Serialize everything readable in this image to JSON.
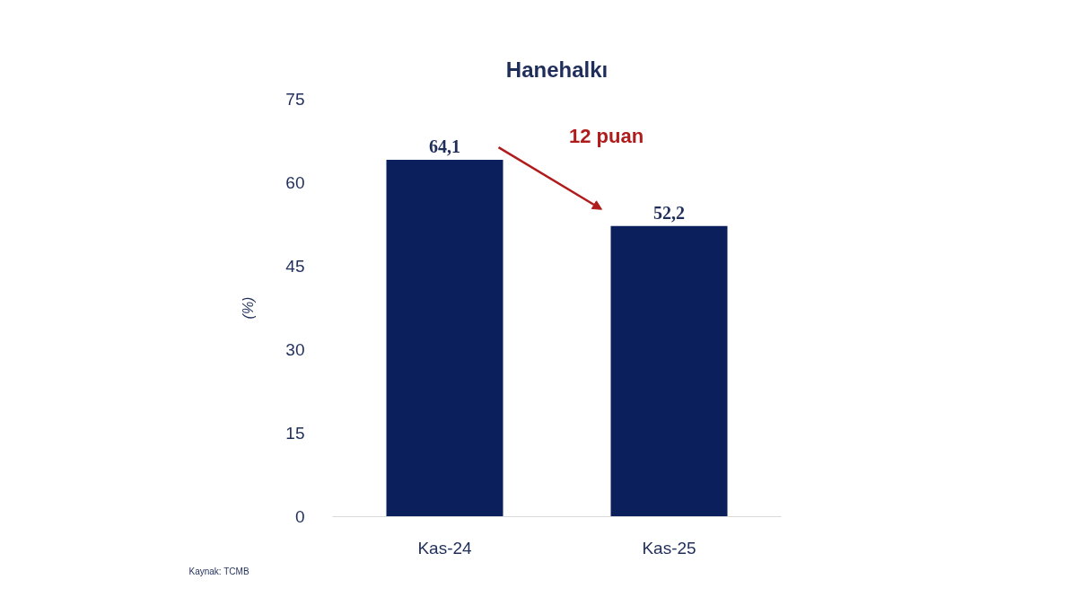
{
  "chart_data": {
    "type": "bar",
    "title": "Hanehalkı",
    "ylabel": "(%)",
    "categories": [
      "Kas-24",
      "Kas-25"
    ],
    "series": [
      {
        "color": "#0b1f5c",
        "values": [
          64.1,
          52.2
        ],
        "value_labels": [
          "64,1",
          "52,2"
        ]
      }
    ],
    "ylim": [
      0,
      75
    ],
    "yticks": [
      0,
      15,
      30,
      45,
      60,
      75
    ],
    "grid": false,
    "annotations": [
      "12 puan",
      "Kaynak: TCMB"
    ]
  }
}
